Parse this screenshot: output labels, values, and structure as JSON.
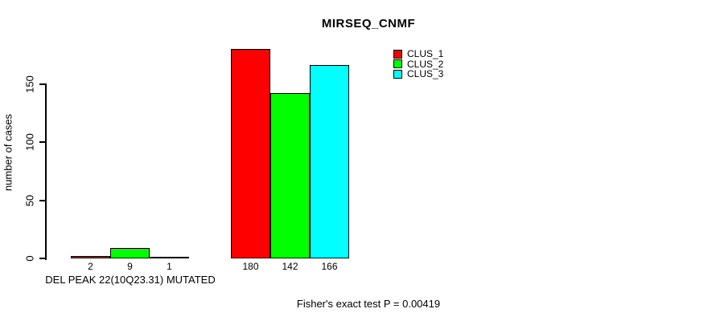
{
  "chart_data": {
    "type": "bar",
    "title": "MIRSEQ_CNMF",
    "ylabel": "number of cases",
    "xlabel": "",
    "ylim": [
      0,
      185
    ],
    "yticks": [
      0,
      50,
      100,
      150
    ],
    "grid": false,
    "legend_position": "top-right",
    "axis_color": "#000000",
    "categories": [
      "DEL PEAK 22(10Q23.31) MUTATED",
      ""
    ],
    "series": [
      {
        "name": "CLUS_1",
        "color": "#FF0000",
        "values": [
          2,
          180
        ]
      },
      {
        "name": "CLUS_2",
        "color": "#00FF00",
        "values": [
          9,
          142
        ]
      },
      {
        "name": "CLUS_3",
        "color": "#00FFFF",
        "values": [
          1,
          166
        ]
      }
    ],
    "bar_value_labels_shown": true,
    "annotation": "Fisher's exact test P = 0.00419"
  }
}
